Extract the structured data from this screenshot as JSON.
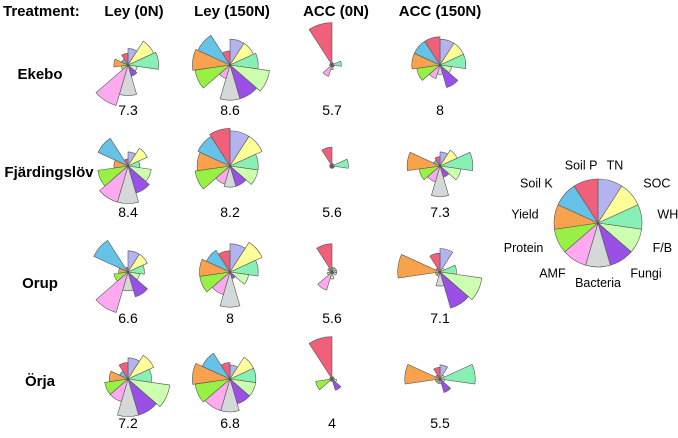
{
  "header": {
    "treatment_label": "Treatment:",
    "columns": [
      "Ley (0N)",
      "Ley (150N)",
      "ACC (0N)",
      "ACC (150N)"
    ]
  },
  "sites": [
    "Ekebo",
    "Fjärdingslöv",
    "Orup",
    "Örja"
  ],
  "chart_data": {
    "type": "rose",
    "indicators": [
      "TN",
      "SOC",
      "WHC",
      "F/B",
      "Fungi",
      "Bacteria",
      "AMF",
      "Protein",
      "Yield",
      "Soil K",
      "Soil P"
    ],
    "colors": [
      "#b3b3f0",
      "#ffff99",
      "#88f0b4",
      "#ccffb0",
      "#9a50e6",
      "#d4d8d8",
      "#ffaaf0",
      "#99f044",
      "#f9a24e",
      "#66c2e6",
      "#f0607a"
    ],
    "value_range": [
      0,
      1
    ],
    "legend": {
      "placement": "right",
      "labels": [
        "TN",
        "SOC",
        "WHC",
        "F/B",
        "Fungi",
        "Bacteria",
        "AMF",
        "Protein",
        "Yield",
        "Soil K",
        "Soil P"
      ]
    },
    "plots": [
      {
        "site": "Ekebo",
        "treatment": "Ley (0N)",
        "score": "7.3",
        "values": [
          0.35,
          0.6,
          0.65,
          0.2,
          0.25,
          0.65,
          0.9,
          0.15,
          0.3,
          0.15,
          0.25
        ]
      },
      {
        "site": "Ekebo",
        "treatment": "Ley (150N)",
        "score": "8.6",
        "values": [
          0.55,
          0.55,
          0.6,
          0.85,
          0.75,
          0.75,
          0.3,
          0.75,
          0.8,
          0.75,
          0.3
        ]
      },
      {
        "site": "Ekebo",
        "treatment": "ACC (0N)",
        "score": "5.7",
        "values": [
          0.05,
          0.05,
          0.2,
          0.05,
          0.05,
          0.1,
          0.25,
          0.05,
          0.05,
          0.05,
          0.9
        ]
      },
      {
        "site": "Ekebo",
        "treatment": "ACC (150N)",
        "score": "8",
        "values": [
          0.55,
          0.55,
          0.55,
          0.25,
          0.5,
          0.2,
          0.3,
          0.5,
          0.6,
          0.6,
          0.6
        ]
      },
      {
        "site": "Fjärdingslöv",
        "treatment": "Ley (0N)",
        "score": "8.4",
        "values": [
          0.3,
          0.45,
          0.25,
          0.5,
          0.6,
          0.8,
          0.8,
          0.65,
          0.3,
          0.7,
          0.15
        ]
      },
      {
        "site": "Fjärdingslöv",
        "treatment": "Ley (150N)",
        "score": "8.2",
        "values": [
          0.75,
          0.75,
          0.6,
          0.6,
          0.45,
          0.45,
          0.4,
          0.75,
          0.7,
          0.75,
          0.8
        ]
      },
      {
        "site": "Fjärdingslöv",
        "treatment": "ACC (0N)",
        "score": "5.6",
        "values": [
          0.05,
          0.05,
          0.35,
          0.05,
          0.05,
          0.05,
          0.05,
          0.05,
          0.05,
          0.05,
          0.4
        ]
      },
      {
        "site": "Fjärdingslöv",
        "treatment": "ACC (150N)",
        "score": "7.3",
        "values": [
          0.3,
          0.4,
          0.7,
          0.45,
          0.25,
          0.65,
          0.35,
          0.45,
          0.7,
          0.15,
          0.2
        ]
      },
      {
        "site": "Orup",
        "treatment": "Ley (0N)",
        "score": "6.6",
        "values": [
          0.45,
          0.45,
          0.35,
          0.25,
          0.55,
          0.4,
          0.9,
          0.3,
          0.2,
          0.8,
          0.1
        ]
      },
      {
        "site": "Orup",
        "treatment": "Ley (150N)",
        "score": "8",
        "values": [
          0.6,
          0.75,
          0.6,
          0.4,
          0.15,
          0.75,
          0.5,
          0.65,
          0.65,
          0.55,
          0.45
        ]
      },
      {
        "site": "Orup",
        "treatment": "ACC (0N)",
        "score": "5.6",
        "values": [
          0.1,
          0.1,
          0.1,
          0.1,
          0.05,
          0.15,
          0.4,
          0.1,
          0.05,
          0.1,
          0.6
        ]
      },
      {
        "site": "Orup",
        "treatment": "ACC (150N)",
        "score": "7.1",
        "values": [
          0.5,
          0.1,
          0.35,
          0.9,
          0.8,
          0.3,
          0.1,
          0.1,
          0.9,
          0.1,
          0.4
        ]
      },
      {
        "site": "Örja",
        "treatment": "Ley (0N)",
        "score": "7.2",
        "values": [
          0.45,
          0.6,
          0.5,
          0.9,
          0.8,
          0.8,
          0.5,
          0.5,
          0.4,
          0.2,
          0.35
        ]
      },
      {
        "site": "Örja",
        "treatment": "Ley (150N)",
        "score": "6.8",
        "values": [
          0.3,
          0.55,
          0.55,
          0.55,
          0.55,
          0.7,
          0.7,
          0.75,
          0.8,
          0.65,
          0.35
        ]
      },
      {
        "site": "Örja",
        "treatment": "ACC (0N)",
        "score": "4",
        "values": [
          0.05,
          0.05,
          0.05,
          0.1,
          0.25,
          0.05,
          0.05,
          0.35,
          0.05,
          0.05,
          0.9
        ]
      },
      {
        "site": "Örja",
        "treatment": "ACC (150N)",
        "score": "5.5",
        "values": [
          0.3,
          0.1,
          0.75,
          0.1,
          0.3,
          0.1,
          0.1,
          0.1,
          0.75,
          0.1,
          0.25
        ]
      }
    ]
  }
}
